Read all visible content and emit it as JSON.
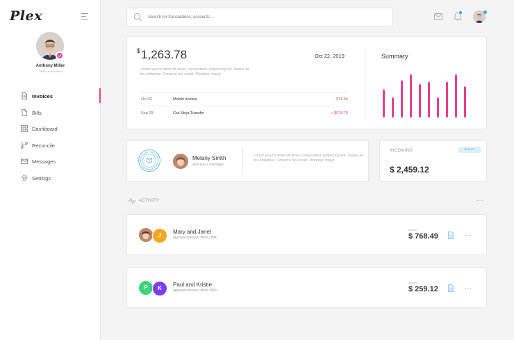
{
  "app": {
    "logo": "Plex"
  },
  "profile": {
    "name": "Anthony Miller",
    "role": "Senior Accountant"
  },
  "nav": [
    {
      "label": "Invoices",
      "icon": "invoice-icon",
      "active": true
    },
    {
      "label": "Bills",
      "icon": "file-icon"
    },
    {
      "label": "Dashboard",
      "icon": "grid-icon"
    },
    {
      "label": "Reconcile",
      "icon": "git-branch-icon"
    },
    {
      "label": "Messages",
      "icon": "mail-icon"
    },
    {
      "label": "Settings",
      "icon": "gear-icon"
    }
  ],
  "search": {
    "placeholder": "Search for transactions, accounts ..."
  },
  "summary_card": {
    "currency": "$",
    "balance": "1,263.78",
    "date": "Oct 22, 2019",
    "description": "Lorem ipsum dolor sit amet, consectetur adipiscing elit. Itaque ab his ordiamur. Conecta res esset. Moriatur, inquit.",
    "transactions": [
      {
        "date": "Oct 02",
        "name": "Mobile invoice",
        "amount": "- $78.56",
        "type": "minus"
      },
      {
        "date": "Sep 29",
        "name": "Css Ninja Transfer",
        "amount": "+ $578.79",
        "type": "plus"
      }
    ],
    "summary_title": "Summary"
  },
  "chart_data": {
    "type": "bar",
    "bar_color": "#e83e8c",
    "values": [
      38,
      27,
      50,
      58,
      45,
      48,
      27,
      48,
      58,
      42
    ]
  },
  "message_card": {
    "name": "Melany Smith",
    "subtitle": "sent you a message",
    "text": "Lorem ipsum dolor sit amet, consectetur adipiscing elit. Itaque ab his ordiamur. Conecta res esset. Moriatur, inquit."
  },
  "incoming_card": {
    "label": "INCOMING",
    "pill": "VIEW ALL",
    "amount": "$ 2,459.12"
  },
  "activity": {
    "label": "ACTIVITY",
    "items": [
      {
        "title": "Mary and Janet",
        "subtitle": "approved invoice #INV-7894",
        "amount_label": "amount",
        "amount": "$ 768.49",
        "avatars": [
          {
            "letter": "",
            "color": "#c9a58b"
          },
          {
            "letter": "J",
            "color": "#f5a623"
          }
        ]
      },
      {
        "title": "Paul and Kristie",
        "subtitle": "approved invoice #INV-7899",
        "amount_label": "amount",
        "amount": "$ 259.12",
        "avatars": [
          {
            "letter": "P",
            "color": "#3ed47a"
          },
          {
            "letter": "K",
            "color": "#7b3ff0"
          }
        ]
      }
    ]
  },
  "colors": {
    "accent": "#e83e8c",
    "blue": "#35a6f0"
  }
}
